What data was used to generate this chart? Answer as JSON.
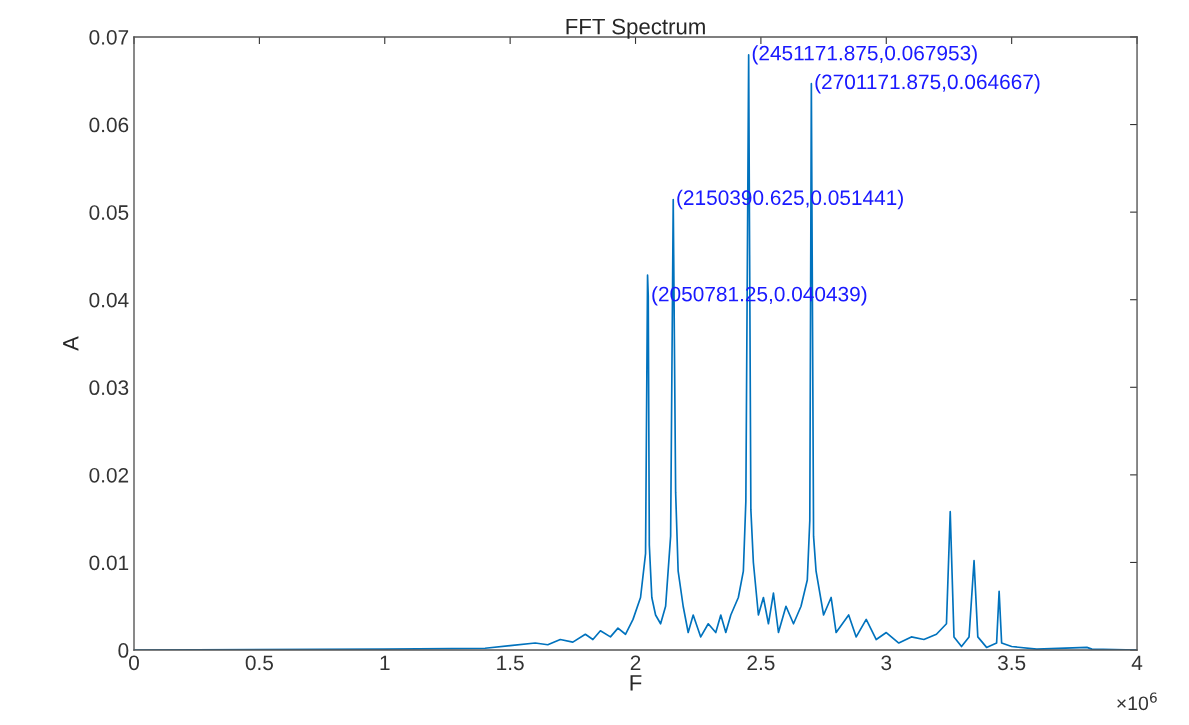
{
  "chart_data": {
    "type": "line",
    "title": "FFT Spectrum",
    "xlabel": "F",
    "ylabel": "A",
    "x": [
      0,
      1,
      1.4,
      1.5,
      1.6,
      1.65,
      1.7,
      1.75,
      1.8,
      1.83,
      1.86,
      1.9,
      1.93,
      1.96,
      1.99,
      2.02,
      2.04,
      2.048,
      2.05078125,
      2.055,
      2.065,
      2.08,
      2.1,
      2.12,
      2.14,
      2.150390625,
      2.16,
      2.17,
      2.19,
      2.21,
      2.23,
      2.26,
      2.29,
      2.32,
      2.34,
      2.36,
      2.38,
      2.41,
      2.43,
      2.44,
      2.451171875,
      2.46,
      2.47,
      2.49,
      2.51,
      2.53,
      2.55,
      2.57,
      2.6,
      2.63,
      2.66,
      2.685,
      2.695,
      2.701171875,
      2.71,
      2.72,
      2.75,
      2.78,
      2.8,
      2.85,
      2.88,
      2.92,
      2.96,
      3.0,
      3.05,
      3.1,
      3.15,
      3.2,
      3.24,
      3.255,
      3.27,
      3.3,
      3.33,
      3.35,
      3.365,
      3.4,
      3.44,
      3.45,
      3.46,
      3.5,
      3.6,
      3.8,
      3.82,
      4.0
    ],
    "series": [
      {
        "color": "#0072bd",
        "values": [
          0,
          0.0001,
          0.0002,
          0.0005,
          0.0008,
          0.0006,
          0.0012,
          0.0009,
          0.0018,
          0.0012,
          0.0022,
          0.0015,
          0.0025,
          0.0018,
          0.0035,
          0.006,
          0.011,
          0.0428,
          0.040439,
          0.012,
          0.006,
          0.004,
          0.003,
          0.005,
          0.013,
          0.051441,
          0.018,
          0.009,
          0.005,
          0.002,
          0.004,
          0.0015,
          0.003,
          0.002,
          0.004,
          0.002,
          0.004,
          0.006,
          0.009,
          0.017,
          0.067953,
          0.016,
          0.01,
          0.004,
          0.006,
          0.003,
          0.0065,
          0.002,
          0.005,
          0.003,
          0.005,
          0.008,
          0.0148,
          0.064667,
          0.013,
          0.009,
          0.004,
          0.006,
          0.002,
          0.004,
          0.0015,
          0.0035,
          0.0012,
          0.002,
          0.0008,
          0.0015,
          0.0012,
          0.0018,
          0.003,
          0.0158,
          0.0015,
          0.0004,
          0.0015,
          0.0102,
          0.0015,
          0.0003,
          0.0008,
          0.0067,
          0.0008,
          0.0004,
          0.0001,
          0.0003,
          0.0001,
          0
        ]
      }
    ],
    "xlim": [
      0,
      4
    ],
    "ylim": [
      0,
      0.07
    ],
    "xticks": [
      0,
      0.5,
      1,
      1.5,
      2,
      2.5,
      3,
      3.5,
      4
    ],
    "yticks": [
      0,
      0.01,
      0.02,
      0.03,
      0.04,
      0.05,
      0.06,
      0.07
    ],
    "annotations": [
      {
        "text": "(2050781.25,0.040439)",
        "x": 2.05078125,
        "y": 0.040439
      },
      {
        "text": "(2150390.625,0.051441)",
        "x": 2.150390625,
        "y": 0.051441
      },
      {
        "text": "(2451171.875,0.067953)",
        "x": 2.451171875,
        "y": 0.067953
      },
      {
        "text": "(2701171.875,0.064667)",
        "x": 2.701171875,
        "y": 0.064667
      },
      "×10$^{6}$"
    ],
    "grid": false,
    "marker": "none",
    "line_style": "solid"
  }
}
